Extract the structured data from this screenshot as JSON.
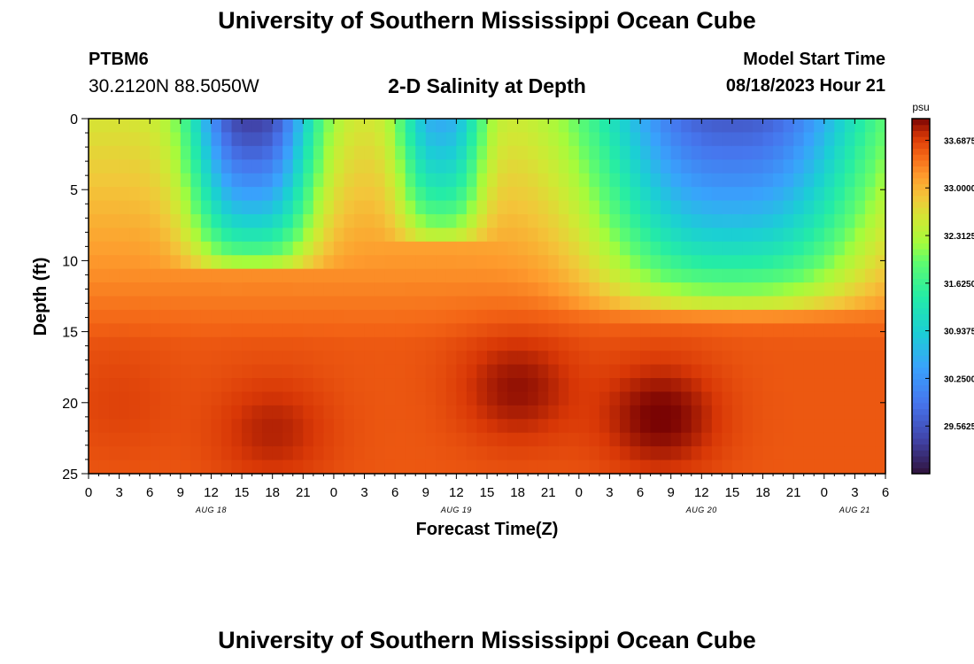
{
  "header": {
    "title": "University of Southern Mississippi Ocean Cube",
    "station_id": "PTBM6",
    "coordinates": "30.2120N  88.5050W",
    "subtitle": "2-D Salinity at Depth",
    "model_start_label": "Model Start Time",
    "model_start_value": "08/18/2023 Hour 21"
  },
  "footer": {
    "title": "University of Southern Mississippi Ocean Cube"
  },
  "chart_data": {
    "type": "heatmap",
    "title": "2-D Salinity at Depth",
    "xlabel": "Forecast Time(Z)",
    "ylabel": "Depth (ft)",
    "x_unit": "hours since AUG 18 00Z",
    "xlim": [
      0,
      78
    ],
    "ylim": [
      0,
      25
    ],
    "x_tick_values": [
      0,
      3,
      6,
      9,
      12,
      15,
      18,
      21,
      24,
      27,
      30,
      33,
      36,
      39,
      42,
      45,
      48,
      51,
      54,
      57,
      60,
      63,
      66,
      69,
      72,
      75,
      78
    ],
    "x_tick_labels": [
      "0",
      "3",
      "6",
      "9",
      "12",
      "15",
      "18",
      "21",
      "0",
      "3",
      "6",
      "9",
      "12",
      "15",
      "18",
      "21",
      "0",
      "3",
      "6",
      "9",
      "12",
      "15",
      "18",
      "21",
      "0",
      "3",
      "6"
    ],
    "date_labels": [
      {
        "text": "AUG 18",
        "x": 12
      },
      {
        "text": "AUG 19",
        "x": 36
      },
      {
        "text": "AUG 20",
        "x": 60
      },
      {
        "text": "AUG 21",
        "x": 75
      }
    ],
    "y_tick_values": [
      0,
      5,
      10,
      15,
      20,
      25
    ],
    "y_tick_labels": [
      "0",
      "5",
      "10",
      "15",
      "20",
      "25"
    ],
    "colorbar": {
      "unit": "psu",
      "min": 28.875,
      "max": 34.0,
      "tick_values": [
        33.6875,
        33.0,
        32.3125,
        31.625,
        30.9375,
        30.25,
        29.5625
      ],
      "tick_labels": [
        "33.6875",
        "33.0000",
        "32.3125",
        "31.6250",
        "30.9375",
        "30.2500",
        "29.5625"
      ]
    },
    "field_model": {
      "description": "approximate salinity field: surface fresh lenses (blobs) over a saline bottom layer",
      "base_surface": 32.6,
      "base_bottom": 33.55,
      "fresh_lenses": [
        {
          "x_center": 16,
          "x_halfwidth": 6.0,
          "depth": 11,
          "min_salinity": 29.3
        },
        {
          "x_center": 34.5,
          "x_halfwidth": 4.0,
          "depth": 9,
          "min_salinity": 30.5
        },
        {
          "x_center": 63,
          "x_halfwidth": 13.0,
          "depth": 14,
          "min_salinity": 29.6
        }
      ],
      "saline_cores": [
        {
          "x_center": 18,
          "depth": 22,
          "peak_salinity": 33.9
        },
        {
          "x_center": 42,
          "depth": 19,
          "peak_salinity": 34.0
        },
        {
          "x_center": 56,
          "depth": 21,
          "peak_salinity": 34.1
        },
        {
          "x_center": 3,
          "depth": 20,
          "peak_salinity": 33.7
        }
      ]
    }
  }
}
